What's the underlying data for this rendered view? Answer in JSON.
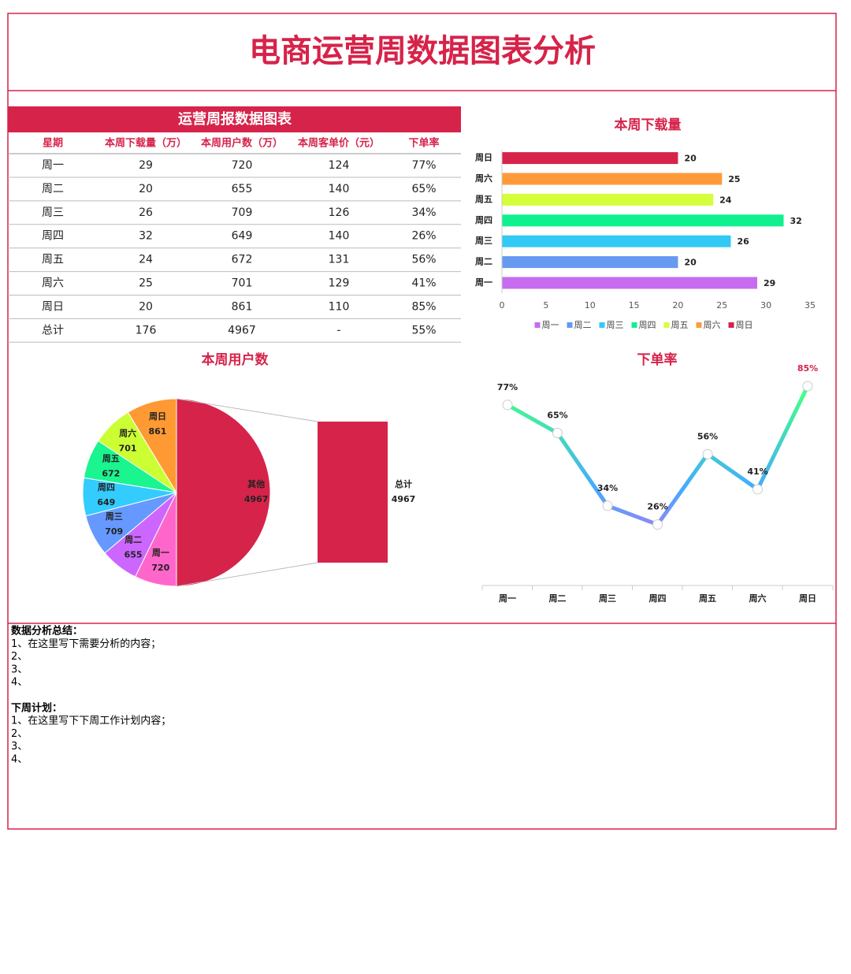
{
  "title": "电商运营周数据图表分析",
  "table": {
    "title": "运营周报数据图表",
    "columns": [
      "星期",
      "本周下载量（万）",
      "本周用户数（万）",
      "本周客单价（元）",
      "下单率"
    ],
    "rows": [
      [
        "周一",
        "29",
        "720",
        "124",
        "77%"
      ],
      [
        "周二",
        "20",
        "655",
        "140",
        "65%"
      ],
      [
        "周三",
        "26",
        "709",
        "126",
        "34%"
      ],
      [
        "周四",
        "32",
        "649",
        "140",
        "26%"
      ],
      [
        "周五",
        "24",
        "672",
        "131",
        "56%"
      ],
      [
        "周六",
        "25",
        "701",
        "129",
        "41%"
      ],
      [
        "周日",
        "20",
        "861",
        "110",
        "85%"
      ],
      [
        "总计",
        "176",
        "4967",
        "-",
        "55%"
      ]
    ]
  },
  "chart_data": [
    {
      "type": "bar",
      "title": "本周下载量",
      "orientation": "horizontal",
      "categories": [
        "周一",
        "周二",
        "周三",
        "周四",
        "周五",
        "周六",
        "周日"
      ],
      "values": [
        29,
        20,
        26,
        32,
        24,
        25,
        20
      ],
      "colors": [
        "#c66cf0",
        "#6699f0",
        "#33c9f5",
        "#10f08f",
        "#d4ff3a",
        "#ff9a3a",
        "#d6234a"
      ],
      "xlim": [
        0,
        35
      ],
      "xticks": [
        0,
        5,
        10,
        15,
        20,
        25,
        30,
        35
      ],
      "legend": "bottom"
    },
    {
      "type": "pie",
      "title": "本周用户数",
      "categories": [
        "其他",
        "周一",
        "周二",
        "周三",
        "周四",
        "周五",
        "周六",
        "周日"
      ],
      "values": [
        4967,
        720,
        655,
        709,
        649,
        672,
        701,
        861
      ],
      "colors": [
        "#d6234a",
        "#ff66cc",
        "#cc66ff",
        "#6699ff",
        "#33ccff",
        "#1af58f",
        "#ccff33",
        "#ff9933"
      ],
      "secondary": {
        "label": "总计",
        "value": 4967,
        "color": "#d6234a"
      }
    },
    {
      "type": "line",
      "title": "下单率",
      "categories": [
        "周一",
        "周二",
        "周三",
        "周四",
        "周五",
        "周六",
        "周日"
      ],
      "values": [
        77,
        65,
        34,
        26,
        56,
        41,
        85
      ],
      "value_labels": [
        "77%",
        "65%",
        "34%",
        "26%",
        "56%",
        "41%",
        "85%"
      ]
    }
  ],
  "notes": {
    "summary_title": "数据分析总结：",
    "summary": [
      "1、在这里写下需要分析的内容；",
      "2、",
      "3、",
      "4、"
    ],
    "plan_title": "下周计划：",
    "plan": [
      "1、在这里写下下周工作计划内容；",
      "2、",
      "3、",
      "4、"
    ]
  }
}
